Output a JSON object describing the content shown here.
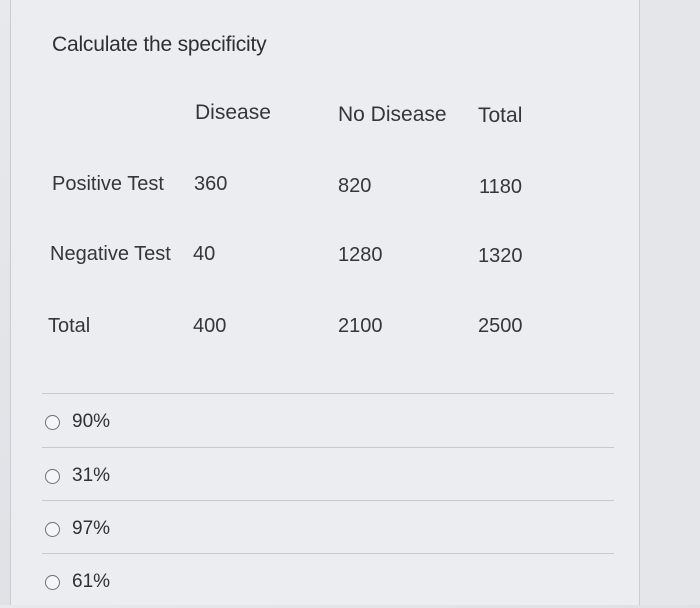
{
  "question": "Calculate the specificity",
  "table": {
    "headers": [
      "Disease",
      "No Disease",
      "Total"
    ],
    "rows": [
      {
        "label": "Positive Test",
        "disease": "360",
        "no_disease": "820",
        "total": "1180"
      },
      {
        "label": "Negative Test",
        "disease": "40",
        "no_disease": "1280",
        "total": "1320"
      },
      {
        "label": "Total",
        "disease": "400",
        "no_disease": "2100",
        "total": "2500"
      }
    ]
  },
  "options": [
    {
      "label": "90%"
    },
    {
      "label": "31%"
    },
    {
      "label": "97%"
    },
    {
      "label": "61%"
    }
  ]
}
